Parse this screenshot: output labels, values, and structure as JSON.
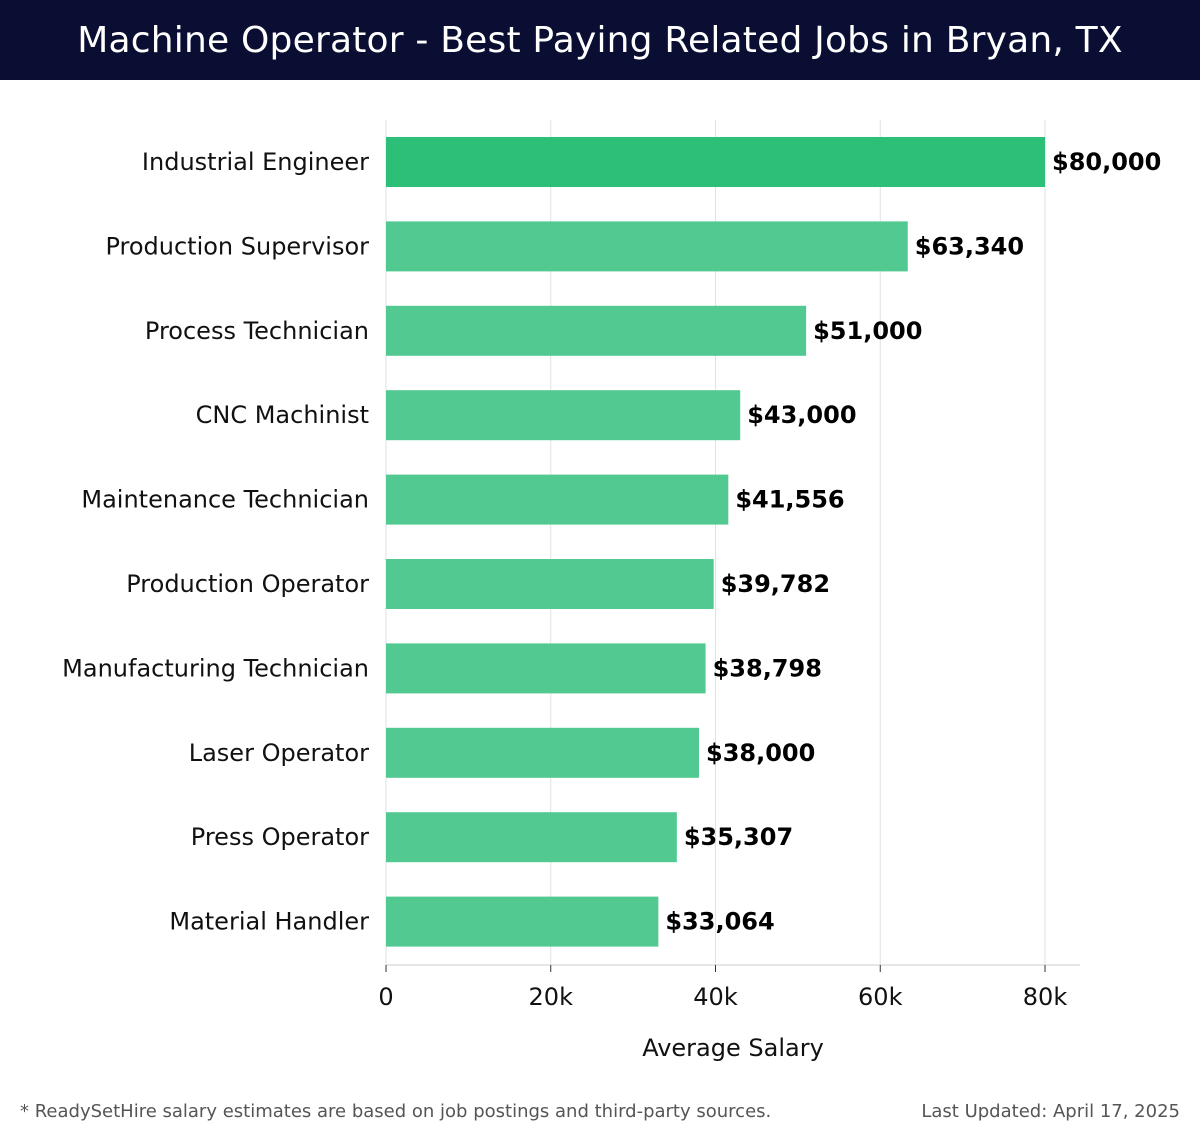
{
  "header": {
    "title": "Machine Operator - Best Paying Related Jobs in Bryan, TX"
  },
  "chart_data": {
    "type": "bar",
    "orientation": "horizontal",
    "categories": [
      "Industrial Engineer",
      "Production Supervisor",
      "Process Technician",
      "CNC Machinist",
      "Maintenance Technician",
      "Production Operator",
      "Manufacturing Technician",
      "Laser Operator",
      "Press Operator",
      "Material Handler"
    ],
    "values": [
      80000,
      63340,
      51000,
      43000,
      41556,
      39782,
      38798,
      38000,
      35307,
      33064
    ],
    "value_labels": [
      "$80,000",
      "$63,340",
      "$51,000",
      "$43,000",
      "$41,556",
      "$39,782",
      "$38,798",
      "$38,000",
      "$35,307",
      "$33,064"
    ],
    "xlabel": "Average Salary",
    "ylabel": "",
    "xlim": [
      0,
      84000
    ],
    "xticks": [
      0,
      20000,
      40000,
      60000,
      80000
    ],
    "xtick_labels": [
      "0",
      "20k",
      "40k",
      "60k",
      "80k"
    ],
    "grid": "vertical",
    "bar_color_top": "#2bbf77",
    "bar_color": "#52c990",
    "grid_color": "#e2e2e2"
  },
  "footer": {
    "note": "* ReadySetHire salary estimates are based on job postings and third-party sources.",
    "updated": "Last Updated: April 17, 2025"
  }
}
